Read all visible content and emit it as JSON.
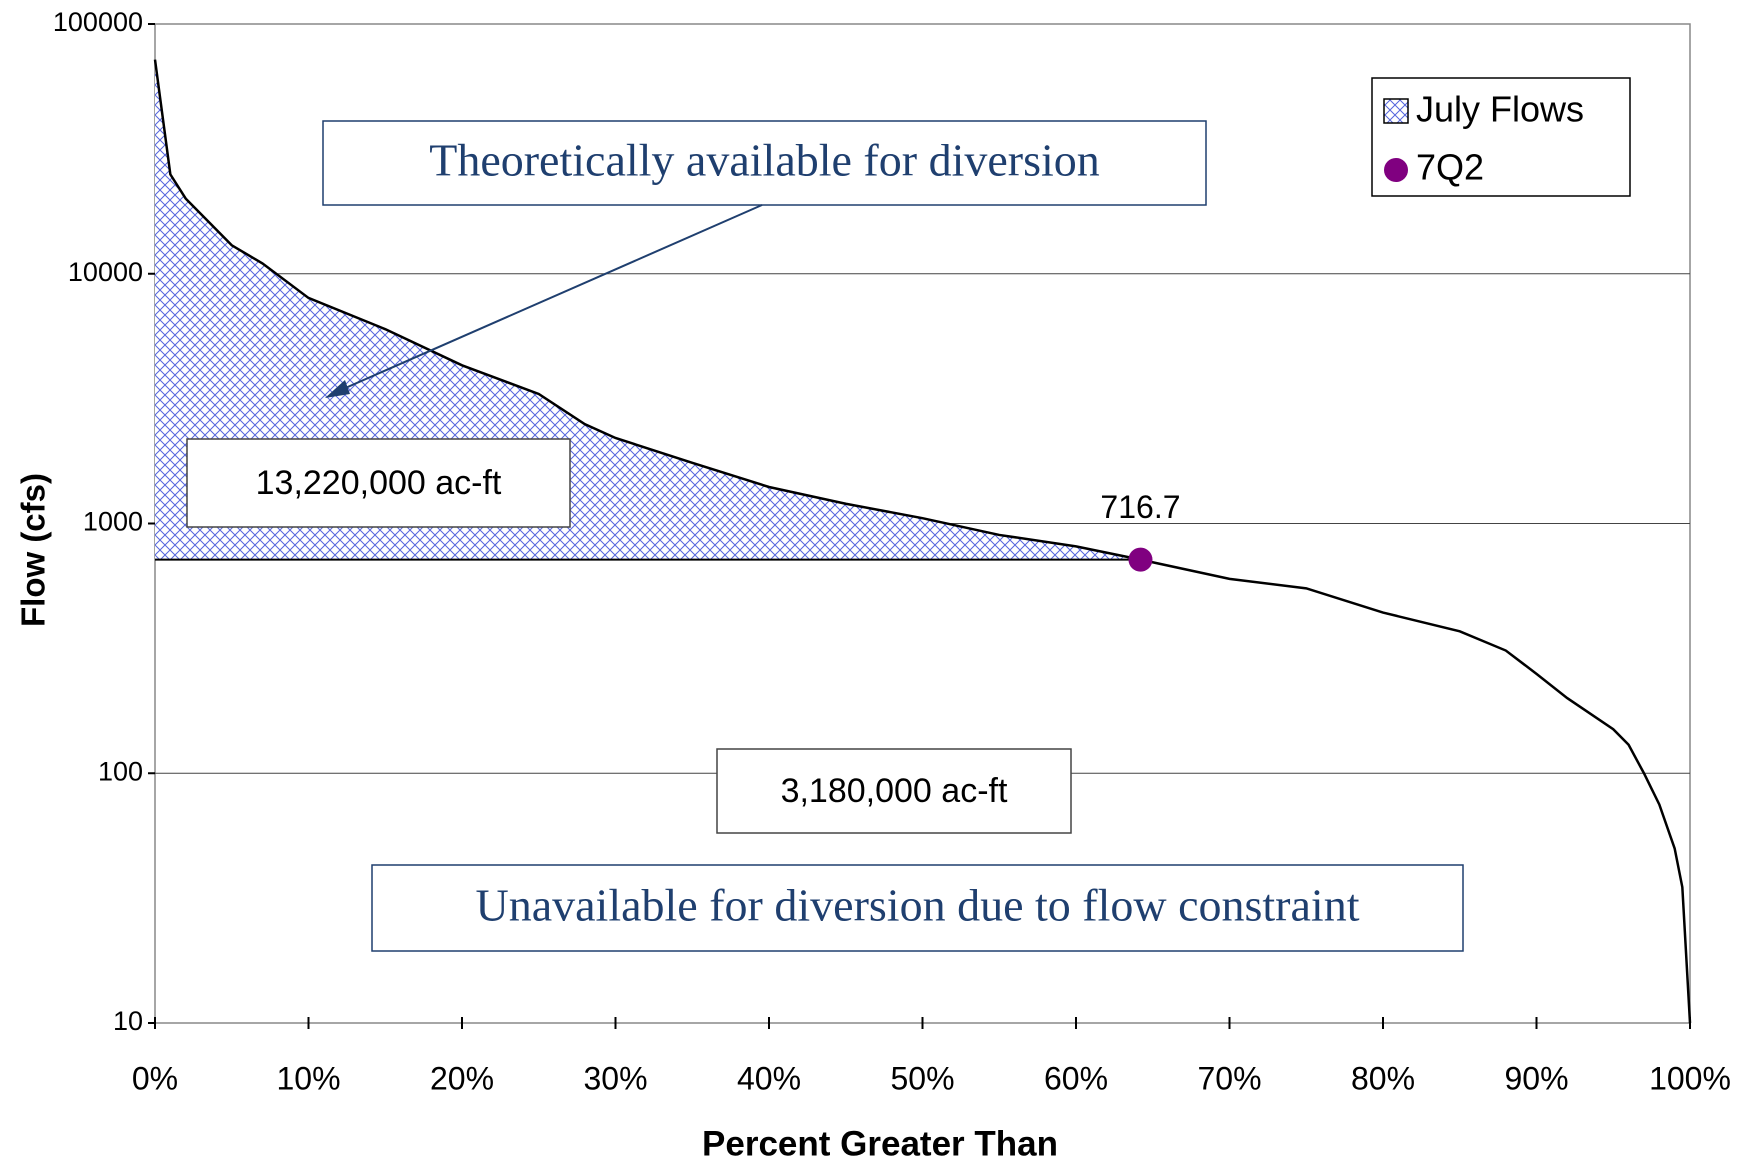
{
  "chart_data": {
    "type": "line",
    "xlabel": "Percent Greater Than",
    "ylabel": "Flow (cfs)",
    "xlim": [
      0,
      100
    ],
    "xticks": [
      {
        "value": 0,
        "label": "0%"
      },
      {
        "value": 10,
        "label": "10%"
      },
      {
        "value": 20,
        "label": "20%"
      },
      {
        "value": 30,
        "label": "30%"
      },
      {
        "value": 40,
        "label": "40%"
      },
      {
        "value": 50,
        "label": "50%"
      },
      {
        "value": 60,
        "label": "60%"
      },
      {
        "value": 70,
        "label": "70%"
      },
      {
        "value": 80,
        "label": "80%"
      },
      {
        "value": 90,
        "label": "90%"
      },
      {
        "value": 100,
        "label": "100%"
      }
    ],
    "ylim": [
      10,
      100000
    ],
    "yticks": [
      10,
      100,
      1000,
      10000,
      100000
    ],
    "ylog": true,
    "grid": true,
    "legend": "upper right",
    "series": [
      {
        "name": "July Flows",
        "color": "#000000",
        "fill": "#3344cc",
        "x": [
          0,
          1,
          2,
          5,
          7,
          10,
          15,
          20,
          25,
          28,
          30,
          35,
          40,
          45,
          50,
          55,
          60,
          64.2,
          70,
          75,
          80,
          85,
          88,
          90,
          92,
          95,
          96,
          97,
          98,
          99,
          99.5,
          100
        ],
        "values": [
          72000,
          25000,
          20000,
          13000,
          11000,
          8000,
          6000,
          4300,
          3300,
          2500,
          2200,
          1750,
          1400,
          1200,
          1050,
          900,
          810,
          716.7,
          600,
          550,
          440,
          370,
          310,
          250,
          200,
          150,
          130,
          100,
          75,
          50,
          35,
          10
        ]
      },
      {
        "name": "7Q2",
        "color": "#800080",
        "x": [
          64.2
        ],
        "values": [
          716.7
        ]
      }
    ],
    "annotations": [
      "Theoretically available for diversion",
      "13,220,000 ac-ft",
      "3,180,000 ac-ft",
      "Unavailable for diversion due to flow constraint"
    ]
  }
}
